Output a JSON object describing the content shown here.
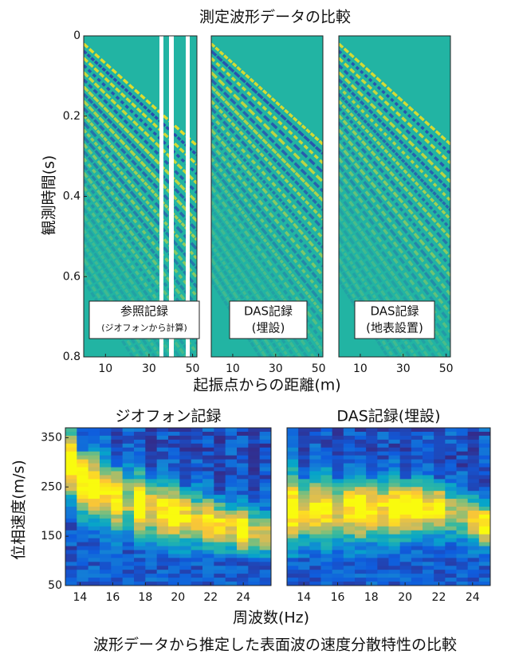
{
  "figure": {
    "title": "測定波形データの比較",
    "top_ylabel": "観測時間(s)",
    "top_xlabel": "起振点からの距離(m)",
    "bottom_ylabel": "位相速度(m/s)",
    "bottom_xlabel": "周波数(Hz)",
    "caption": "波形データから推定した表面波の速度分散特性の比較"
  },
  "chart_data": [
    {
      "type": "heatmap",
      "annotation": [
        "参照記録",
        "(ジオフォンから計算)"
      ],
      "xlim": [
        0,
        52
      ],
      "xticks": [
        10,
        30,
        50
      ],
      "ylim": [
        0,
        0.8
      ],
      "yticks": [
        0,
        0.2,
        0.4,
        0.6,
        0.8
      ],
      "yreverse": true
    },
    {
      "type": "heatmap",
      "annotation": [
        "DAS記録",
        "(埋設)"
      ],
      "xlim": [
        0,
        52
      ],
      "xticks": [
        10,
        30,
        50
      ],
      "ylim": [
        0,
        0.8
      ],
      "yreverse": true
    },
    {
      "type": "heatmap",
      "annotation": [
        "DAS記録",
        "(地表設置)"
      ],
      "xlim": [
        0,
        52
      ],
      "xticks": [
        10,
        30,
        50
      ],
      "ylim": [
        0,
        0.8
      ],
      "yreverse": true
    },
    {
      "type": "dispersion",
      "title": "ジオフォン記録",
      "xlim": [
        13.1,
        25.7
      ],
      "xticks": [
        14,
        16,
        18,
        20,
        22,
        24
      ],
      "ylim": [
        50,
        370
      ],
      "yticks": [
        50,
        150,
        250,
        350
      ]
    },
    {
      "type": "dispersion",
      "title": "DAS記録(埋設)",
      "xlim": [
        13,
        25.05
      ],
      "xticks": [
        14,
        16,
        18,
        20,
        22,
        24
      ],
      "ylim": [
        50,
        370
      ]
    }
  ]
}
